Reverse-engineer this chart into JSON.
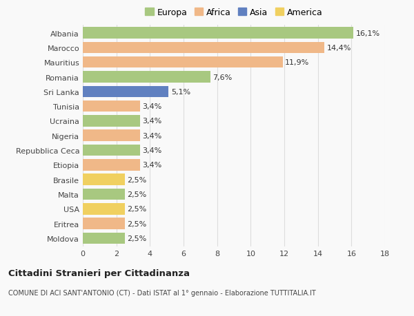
{
  "categories": [
    "Albania",
    "Marocco",
    "Mauritius",
    "Romania",
    "Sri Lanka",
    "Tunisia",
    "Ucraina",
    "Nigeria",
    "Repubblica Ceca",
    "Etiopia",
    "Brasile",
    "Malta",
    "USA",
    "Eritrea",
    "Moldova"
  ],
  "values": [
    16.1,
    14.4,
    11.9,
    7.6,
    5.1,
    3.4,
    3.4,
    3.4,
    3.4,
    3.4,
    2.5,
    2.5,
    2.5,
    2.5,
    2.5
  ],
  "labels": [
    "16,1%",
    "14,4%",
    "11,9%",
    "7,6%",
    "5,1%",
    "3,4%",
    "3,4%",
    "3,4%",
    "3,4%",
    "3,4%",
    "2,5%",
    "2,5%",
    "2,5%",
    "2,5%",
    "2,5%"
  ],
  "colors": [
    "#a8c880",
    "#f0b888",
    "#f0b888",
    "#a8c880",
    "#6080c0",
    "#f0b888",
    "#a8c880",
    "#f0b888",
    "#a8c880",
    "#f0b888",
    "#f0d060",
    "#a8c880",
    "#f0d060",
    "#f0b888",
    "#a8c880"
  ],
  "legend_labels": [
    "Europa",
    "Africa",
    "Asia",
    "America"
  ],
  "legend_colors": [
    "#a8c880",
    "#f0b888",
    "#6080c0",
    "#f0d060"
  ],
  "title": "Cittadini Stranieri per Cittadinanza",
  "subtitle": "COMUNE DI ACI SANT'ANTONIO (CT) - Dati ISTAT al 1° gennaio - Elaborazione TUTTITALIA.IT",
  "xlim": [
    0,
    18
  ],
  "xticks": [
    0,
    2,
    4,
    6,
    8,
    10,
    12,
    14,
    16,
    18
  ],
  "bg_color": "#f9f9f9",
  "plot_bg_color": "#f9f9f9",
  "grid_color": "#dddddd",
  "bar_height": 0.78,
  "label_fontsize": 8.0,
  "tick_fontsize": 8.0,
  "legend_fontsize": 9.0
}
